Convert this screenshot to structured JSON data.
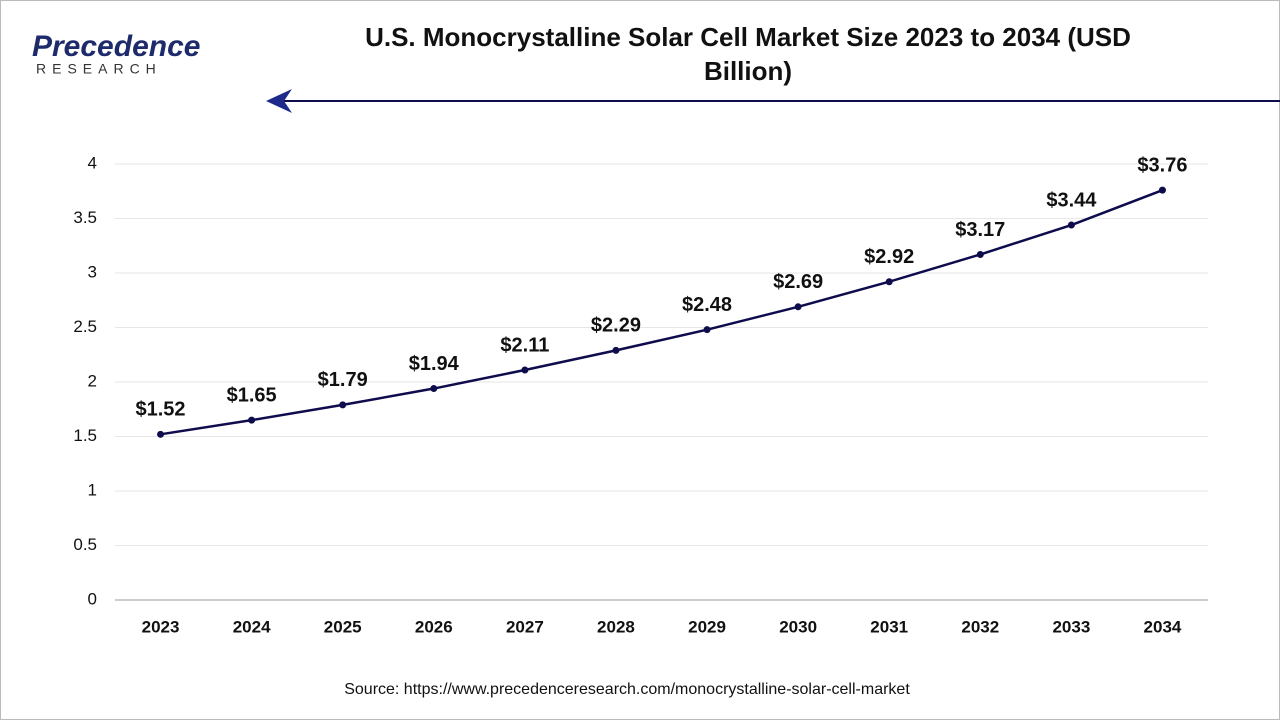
{
  "logo": {
    "name": "Precedence",
    "tagline": "RESEARCH"
  },
  "chart_data": {
    "type": "line",
    "title": "U.S. Monocrystalline Solar Cell Market Size 2023 to 2034 (USD Billion)",
    "categories": [
      "2023",
      "2024",
      "2025",
      "2026",
      "2027",
      "2028",
      "2029",
      "2030",
      "2031",
      "2032",
      "2033",
      "2034"
    ],
    "values": [
      1.52,
      1.65,
      1.79,
      1.94,
      2.11,
      2.29,
      2.48,
      2.69,
      2.92,
      3.17,
      3.44,
      3.76
    ],
    "value_labels": [
      "$1.52",
      "$1.65",
      "$1.79",
      "$1.94",
      "$2.11",
      "$2.29",
      "$2.48",
      "$2.69",
      "$2.92",
      "$3.17",
      "$3.44",
      "$3.76"
    ],
    "color": "#0e0c4c",
    "ylim": [
      0,
      4
    ],
    "yticks": [
      0,
      0.5,
      1,
      1.5,
      2,
      2.5,
      3,
      3.5,
      4
    ],
    "grid": true,
    "source": "Source: https://www.precedenceresearch.com/monocrystalline-solar-cell-market"
  }
}
